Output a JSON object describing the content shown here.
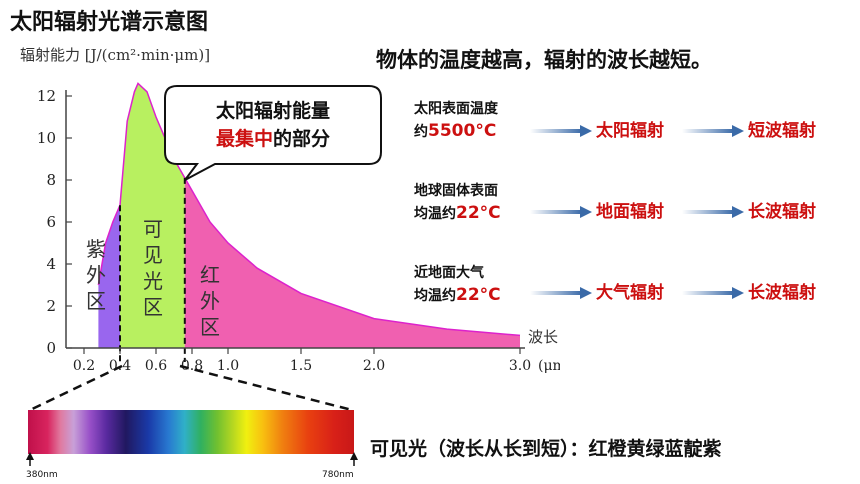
{
  "title": "太阳辐射光谱示意图",
  "y_axis_label": "辐射能力 [J/(cm²·min·μm)]",
  "headline": "物体的温度越高，辐射的波长越短。",
  "bubble": {
    "line1": "太阳辐射能量",
    "line2_highlight": "最集中",
    "line2_rest": "的部分"
  },
  "regions": {
    "uv": "紫外区",
    "visible": "可见光区",
    "ir": "红外区"
  },
  "x_axis_unit_label": "波长",
  "x_axis_unit": "(μm)",
  "rows": [
    {
      "source": "太阳表面温度",
      "prefix": "约",
      "temp": "5500°C",
      "radiation": "太阳辐射",
      "wave": "短波辐射"
    },
    {
      "source": "地球固体表面",
      "prefix": "均温约",
      "temp": "22°C",
      "radiation": "地面辐射",
      "wave": "长波辐射"
    },
    {
      "source": "近地面大气",
      "prefix": "均温约",
      "temp": "22°C",
      "radiation": "大气辐射",
      "wave": "长波辐射"
    }
  ],
  "spectrum": {
    "start": "380nm",
    "end": "780nm"
  },
  "bottom_text": "可见光（波长从长到短）：红橙黄绿蓝靛紫",
  "chart_data": {
    "type": "area",
    "x_ticks": [
      "0.2",
      "0.4",
      "0.6",
      "0.8",
      "1.0",
      "1.5",
      "2.0",
      "3.0"
    ],
    "y_ticks": [
      "0",
      "2",
      "4",
      "6",
      "8",
      "10",
      "12"
    ],
    "x_unit": "(μm)",
    "ylim": [
      0,
      12.5
    ],
    "series": [
      {
        "x": [
          0.28,
          0.32,
          0.36,
          0.4,
          0.44,
          0.48,
          0.5,
          0.55,
          0.6,
          0.7,
          0.8,
          0.9,
          1.0,
          1.2,
          1.5,
          2.0,
          2.5,
          3.0
        ],
        "y": [
          3.0,
          5.0,
          6.0,
          6.8,
          10.8,
          12.2,
          12.6,
          12.2,
          11.0,
          9.0,
          7.5,
          6.0,
          5.0,
          3.8,
          2.6,
          1.4,
          0.9,
          0.6
        ]
      }
    ],
    "colors": {
      "uv": "#9966ee",
      "visible": "#b8f060",
      "ir": "#f060b0",
      "outline": "#dd22cc"
    }
  }
}
